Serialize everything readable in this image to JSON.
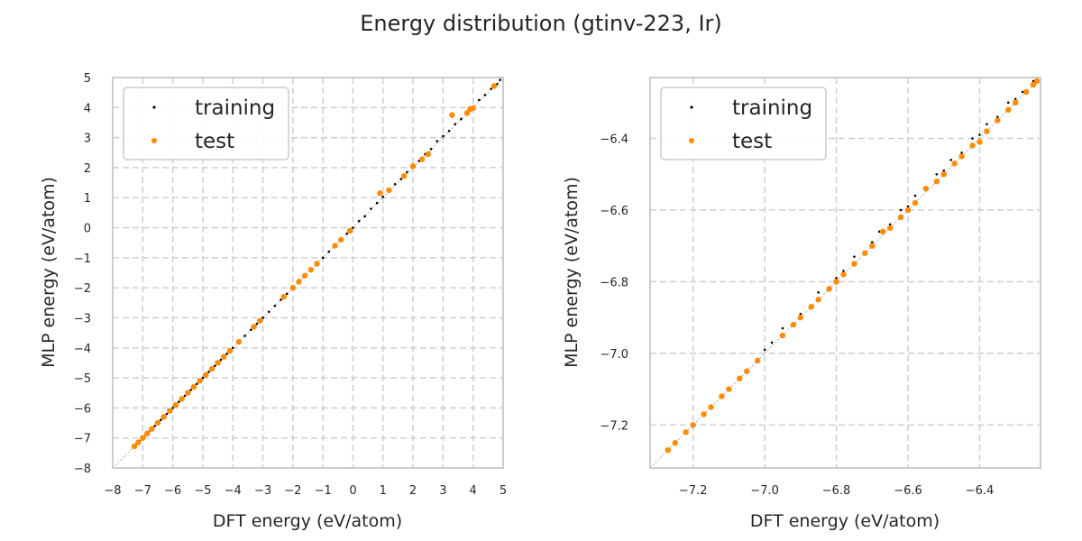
{
  "figure": {
    "title": "Energy distribution (gtinv-223, Ir)"
  },
  "colors": {
    "training": "#000000",
    "test": "#ff8c00",
    "grid": "#cccccc",
    "frame": "#cccccc",
    "diagonal": "#9a9a9a"
  },
  "chart_data": [
    {
      "type": "scatter",
      "xlabel": "DFT energy (eV/atom)",
      "ylabel": "MLP energy (eV/atom)",
      "xlim": [
        -8,
        5
      ],
      "ylim": [
        -8,
        5
      ],
      "xticks": [
        -8,
        -7,
        -6,
        -5,
        -4,
        -3,
        -2,
        -1,
        0,
        1,
        2,
        3,
        4,
        5
      ],
      "yticks": [
        -8,
        -7,
        -6,
        -5,
        -4,
        -3,
        -2,
        -1,
        0,
        1,
        2,
        3,
        4,
        5
      ],
      "grid": true,
      "legend_position": "top-left",
      "diagonal": true,
      "series": [
        {
          "name": "training",
          "color": "#000000",
          "marker": "dot",
          "x": [
            -7.3,
            -7.2,
            -7.1,
            -7.0,
            -6.9,
            -6.8,
            -6.6,
            -6.4,
            -6.2,
            -6.0,
            -5.8,
            -5.6,
            -5.4,
            -5.2,
            -5.0,
            -4.8,
            -4.6,
            -4.4,
            -4.2,
            -4.0,
            -3.8,
            -3.6,
            -3.4,
            -3.2,
            -3.0,
            -2.8,
            -2.6,
            -2.4,
            -2.2,
            -2.0,
            -1.8,
            -1.6,
            -1.4,
            -1.2,
            -1.0,
            -0.8,
            -0.6,
            -0.4,
            -0.2,
            0.0,
            0.2,
            0.4,
            0.6,
            0.8,
            1.0,
            1.2,
            1.4,
            1.6,
            1.8,
            2.0,
            2.2,
            2.4,
            2.6,
            2.8,
            3.0,
            3.2,
            3.4,
            3.6,
            3.8,
            4.0,
            4.2,
            4.4,
            4.6,
            4.8,
            4.9
          ],
          "y": [
            -7.3,
            -7.2,
            -7.1,
            -7.0,
            -6.9,
            -6.8,
            -6.6,
            -6.4,
            -6.2,
            -6.0,
            -5.8,
            -5.6,
            -5.4,
            -5.2,
            -5.0,
            -4.8,
            -4.6,
            -4.4,
            -4.2,
            -4.0,
            -3.8,
            -3.6,
            -3.4,
            -3.2,
            -3.0,
            -2.8,
            -2.6,
            -2.4,
            -2.2,
            -2.0,
            -1.8,
            -1.6,
            -1.4,
            -1.2,
            -1.0,
            -0.8,
            -0.6,
            -0.4,
            -0.2,
            0.0,
            0.22,
            0.38,
            0.63,
            0.82,
            1.03,
            1.2,
            1.45,
            1.62,
            1.85,
            2.04,
            2.22,
            2.45,
            2.62,
            2.88,
            3.05,
            3.22,
            3.45,
            3.62,
            3.85,
            4.02,
            4.25,
            4.42,
            4.62,
            4.78,
            4.92
          ]
        },
        {
          "name": "test",
          "color": "#ff8c00",
          "marker": "circle",
          "x": [
            -7.28,
            -7.15,
            -7.0,
            -6.85,
            -6.7,
            -6.5,
            -6.3,
            -6.1,
            -5.9,
            -5.7,
            -5.5,
            -5.3,
            -5.1,
            -4.9,
            -4.7,
            -4.5,
            -4.3,
            -4.1,
            -3.8,
            -3.3,
            -3.1,
            -2.3,
            -2.0,
            -1.8,
            -1.6,
            -1.4,
            -1.2,
            -0.6,
            -0.4,
            -0.1,
            0.9,
            1.2,
            1.7,
            2.0,
            2.3,
            2.5,
            3.3,
            3.8,
            3.9,
            4.0,
            4.7
          ],
          "y": [
            -7.28,
            -7.15,
            -7.0,
            -6.85,
            -6.7,
            -6.5,
            -6.3,
            -6.1,
            -5.9,
            -5.7,
            -5.5,
            -5.3,
            -5.1,
            -4.9,
            -4.7,
            -4.5,
            -4.3,
            -4.1,
            -3.8,
            -3.3,
            -3.1,
            -2.3,
            -2.0,
            -1.8,
            -1.6,
            -1.4,
            -1.2,
            -0.6,
            -0.4,
            -0.1,
            1.15,
            1.25,
            1.72,
            2.05,
            2.28,
            2.45,
            3.75,
            3.82,
            3.95,
            3.98,
            4.72
          ]
        }
      ]
    },
    {
      "type": "scatter",
      "xlabel": "DFT energy (eV/atom)",
      "ylabel": "MLP energy (eV/atom)",
      "xlim": [
        -7.32,
        -6.23
      ],
      "ylim": [
        -7.32,
        -6.23
      ],
      "xticks": [
        -7.2,
        -7.0,
        -6.8,
        -6.6,
        -6.4
      ],
      "yticks": [
        -7.2,
        -7.0,
        -6.8,
        -6.6,
        -6.4
      ],
      "grid": true,
      "legend_position": "top-left",
      "diagonal": true,
      "series": [
        {
          "name": "training",
          "color": "#000000",
          "marker": "dot",
          "x": [
            -7.25,
            -7.2,
            -7.15,
            -7.1,
            -7.05,
            -7.0,
            -6.98,
            -6.95,
            -6.9,
            -6.85,
            -6.8,
            -6.78,
            -6.75,
            -6.7,
            -6.68,
            -6.65,
            -6.62,
            -6.6,
            -6.58,
            -6.55,
            -6.52,
            -6.5,
            -6.48,
            -6.45,
            -6.42,
            -6.4,
            -6.38,
            -6.35,
            -6.32,
            -6.3,
            -6.28,
            -6.25,
            -6.24
          ],
          "y": [
            -7.25,
            -7.2,
            -7.15,
            -7.1,
            -7.05,
            -6.99,
            -6.97,
            -6.93,
            -6.89,
            -6.83,
            -6.79,
            -6.77,
            -6.73,
            -6.69,
            -6.66,
            -6.64,
            -6.6,
            -6.59,
            -6.56,
            -6.54,
            -6.5,
            -6.49,
            -6.46,
            -6.44,
            -6.4,
            -6.39,
            -6.36,
            -6.34,
            -6.3,
            -6.29,
            -6.27,
            -6.24,
            -6.24
          ]
        },
        {
          "name": "test",
          "color": "#ff8c00",
          "marker": "circle",
          "x": [
            -7.27,
            -7.25,
            -7.22,
            -7.2,
            -7.17,
            -7.15,
            -7.12,
            -7.1,
            -7.07,
            -7.05,
            -7.02,
            -6.95,
            -6.92,
            -6.9,
            -6.87,
            -6.85,
            -6.82,
            -6.8,
            -6.78,
            -6.75,
            -6.72,
            -6.7,
            -6.67,
            -6.65,
            -6.62,
            -6.6,
            -6.58,
            -6.55,
            -6.52,
            -6.5,
            -6.47,
            -6.45,
            -6.42,
            -6.4,
            -6.38,
            -6.35,
            -6.32,
            -6.3,
            -6.27,
            -6.25,
            -6.24
          ],
          "y": [
            -7.27,
            -7.25,
            -7.22,
            -7.2,
            -7.17,
            -7.15,
            -7.12,
            -7.1,
            -7.07,
            -7.05,
            -7.02,
            -6.95,
            -6.92,
            -6.9,
            -6.87,
            -6.85,
            -6.82,
            -6.8,
            -6.78,
            -6.75,
            -6.72,
            -6.7,
            -6.66,
            -6.65,
            -6.62,
            -6.6,
            -6.58,
            -6.54,
            -6.52,
            -6.5,
            -6.47,
            -6.45,
            -6.42,
            -6.41,
            -6.38,
            -6.35,
            -6.32,
            -6.3,
            -6.27,
            -6.25,
            -6.24
          ]
        }
      ]
    }
  ]
}
